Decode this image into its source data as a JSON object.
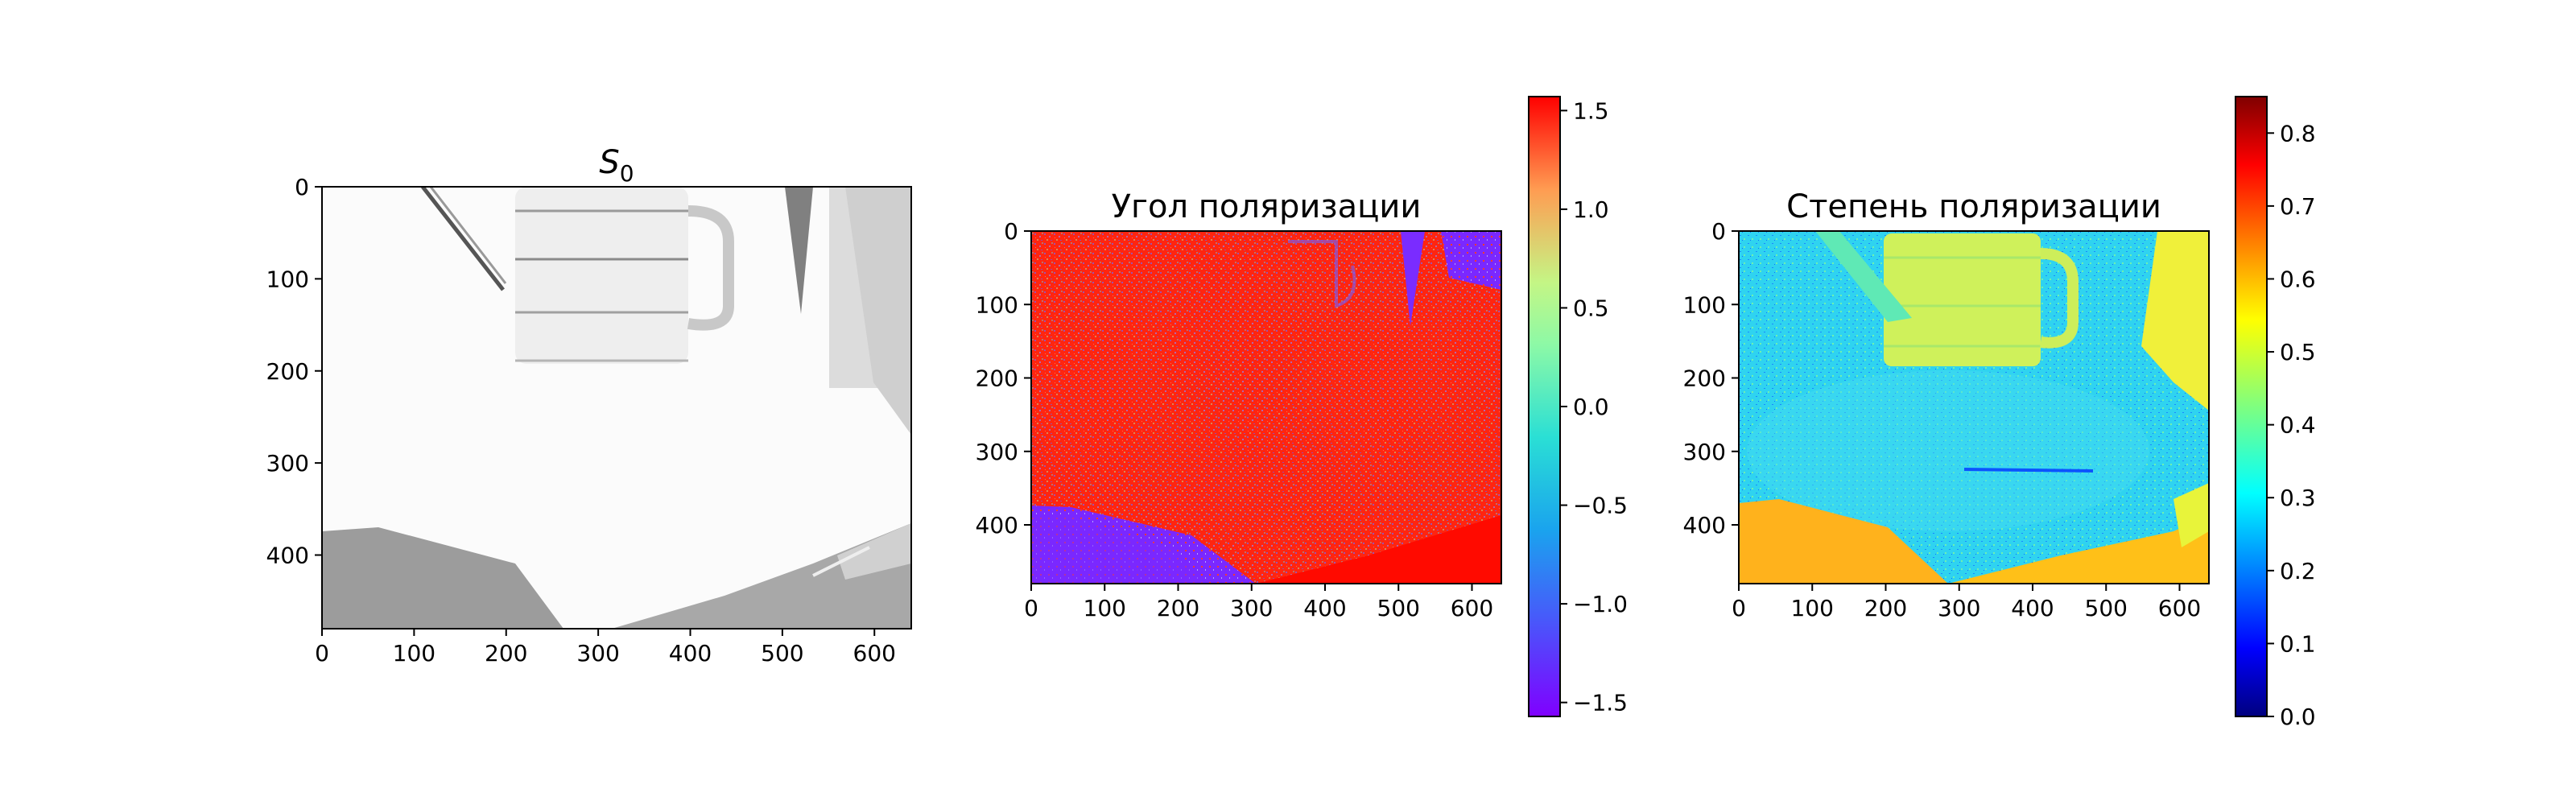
{
  "chart_data": [
    {
      "type": "heatmap",
      "title": "S",
      "title_subscript": "0",
      "colormap": "Greys",
      "xlim": [
        0,
        640
      ],
      "ylim": [
        480,
        0
      ],
      "xticks": [
        0,
        100,
        200,
        300,
        400,
        500,
        600
      ],
      "yticks": [
        0,
        100,
        200,
        300,
        400
      ],
      "colorbar": null
    },
    {
      "type": "heatmap",
      "title": "Угол поляризации",
      "colormap": "rainbow",
      "xlim": [
        0,
        640
      ],
      "ylim": [
        480,
        0
      ],
      "xticks": [
        0,
        100,
        200,
        300,
        400,
        500,
        600
      ],
      "yticks": [
        0,
        100,
        200,
        300,
        400
      ],
      "colorbar": {
        "vmin": -1.5708,
        "vmax": 1.5708,
        "ticks": [
          1.5,
          1.0,
          0.5,
          0.0,
          -0.5,
          -1.0,
          -1.5
        ],
        "tick_labels": [
          "1.5",
          "1.0",
          "0.5",
          "0.0",
          "−0.5",
          "−1.0",
          "−1.5"
        ]
      }
    },
    {
      "type": "heatmap",
      "title": "Степень поляризации",
      "colormap": "jet",
      "xlim": [
        0,
        640
      ],
      "ylim": [
        480,
        0
      ],
      "xticks": [
        0,
        100,
        200,
        300,
        400,
        500,
        600
      ],
      "yticks": [
        0,
        100,
        200,
        300,
        400
      ],
      "colorbar": {
        "vmin": 0,
        "vmax": 0.85,
        "ticks": [
          0.8,
          0.7,
          0.6,
          0.5,
          0.4,
          0.3,
          0.2,
          0.1,
          0.0
        ],
        "tick_labels": [
          "0.8",
          "0.7",
          "0.6",
          "0.5",
          "0.4",
          "0.3",
          "0.2",
          "0.1",
          "0.0"
        ]
      }
    }
  ]
}
